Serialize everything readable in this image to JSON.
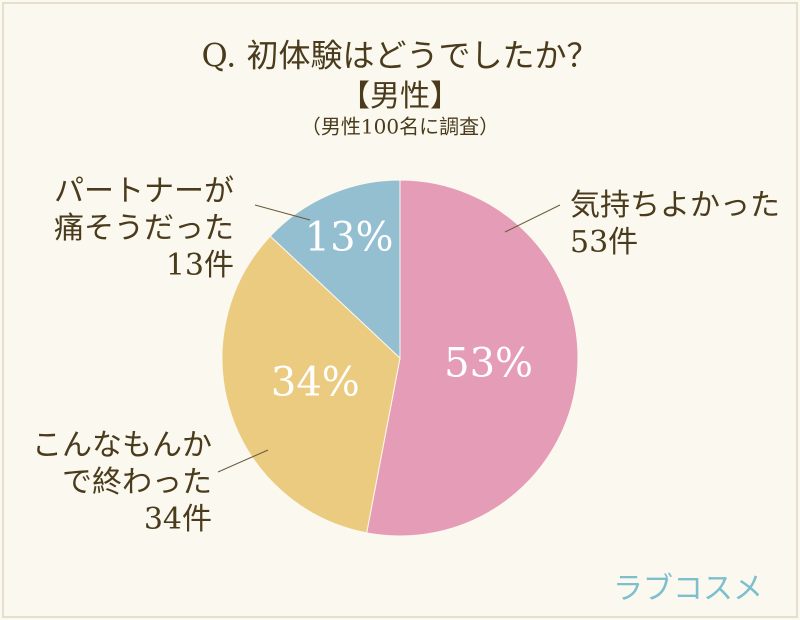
{
  "chart_data": {
    "type": "pie",
    "title": "Q. 初体験はどうでしたか？",
    "subtitle": "【男性】",
    "note": "（男性100名に調査）",
    "categories": [
      [
        "気持ちよかった"
      ],
      [
        "こんなもんか",
        "で終わった"
      ],
      [
        "パートナーが",
        "痛そうだった"
      ]
    ],
    "values": [
      53,
      34,
      13
    ],
    "value_labels": [
      "53%",
      "34%",
      "13%"
    ],
    "count_labels": [
      "53件",
      "34件",
      "13件"
    ],
    "colors": [
      "#e59cb7",
      "#ebcb7f",
      "#94bfd0"
    ],
    "brand": "ラブコスメ"
  }
}
